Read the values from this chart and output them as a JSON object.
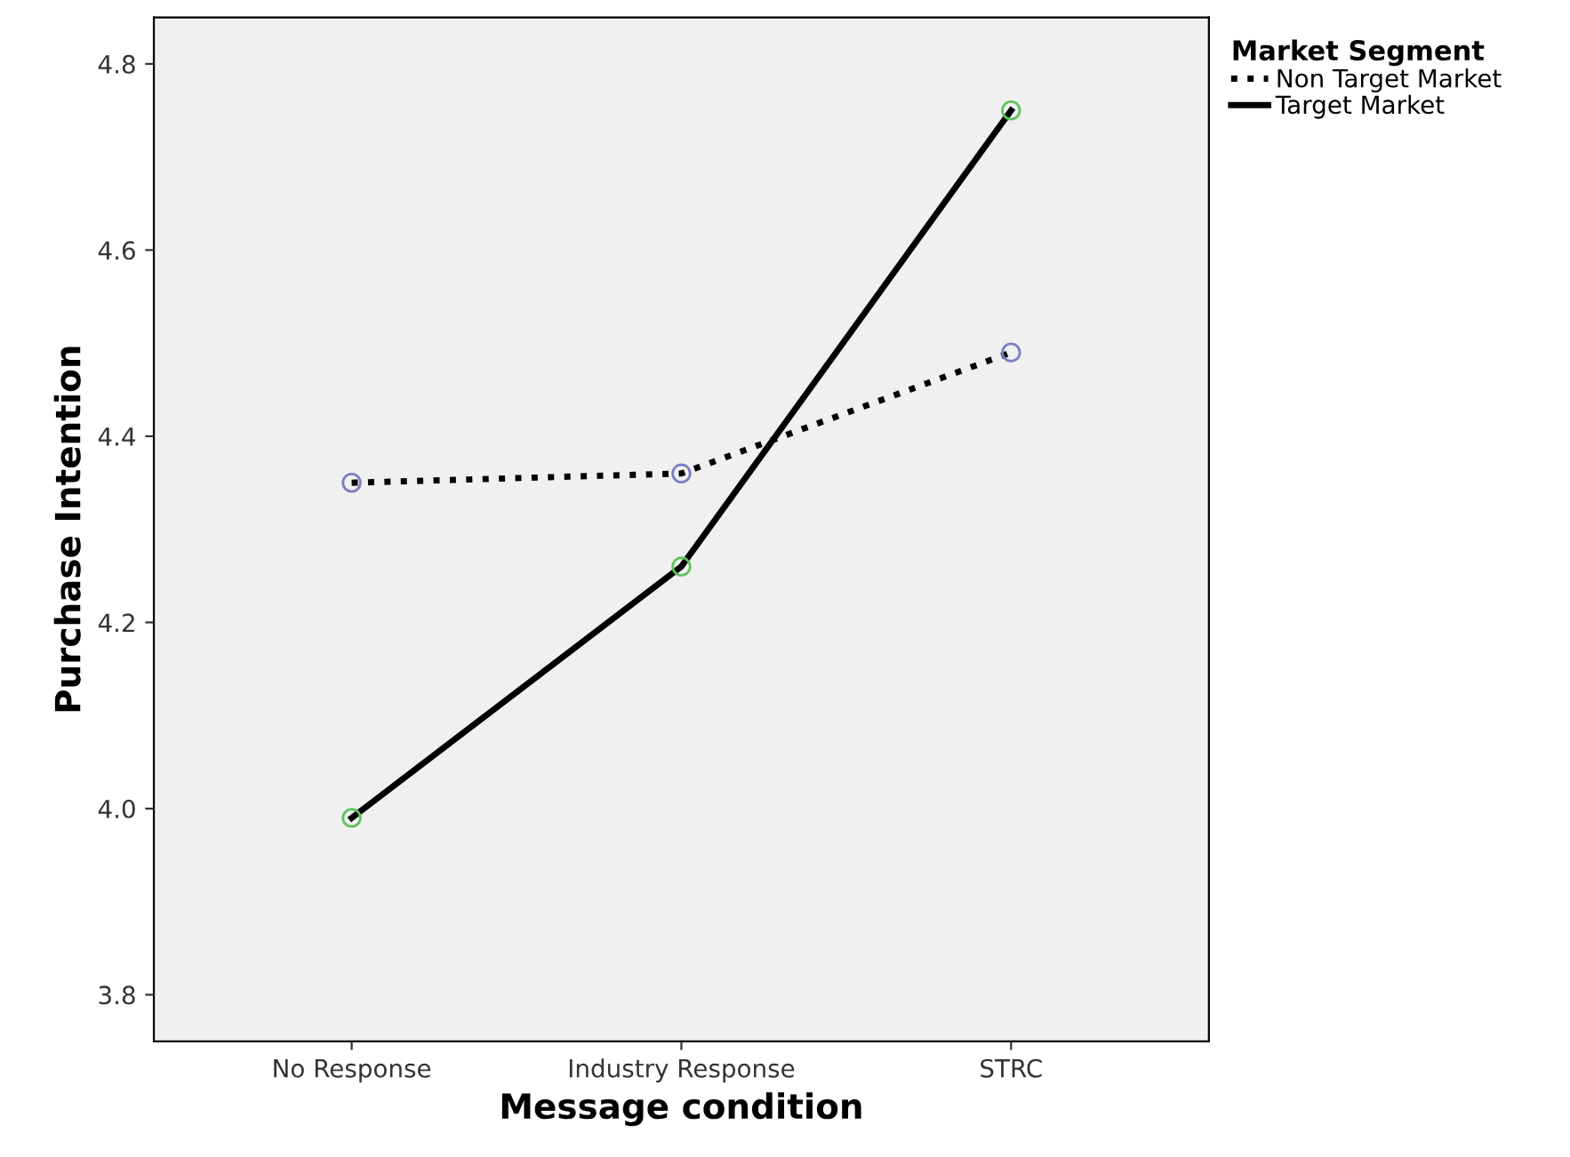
{
  "chart_data": {
    "type": "line",
    "xlabel": "Message condition",
    "ylabel": "Purchase Intention",
    "legend_title": "Market Segment",
    "categories": [
      "No Response",
      "Industry Response",
      "STRC"
    ],
    "series": [
      {
        "name": "Non Target Market",
        "color": "#000000",
        "colors": [
          "#7b7fc4",
          "#7b7fc4",
          "#7b7fc4"
        ],
        "line_style": "dotted",
        "values": [
          4.35,
          4.36,
          4.49
        ]
      },
      {
        "name": "Target Market",
        "color": "#000000",
        "colors": [
          "#5cc45c",
          "#5cc45c",
          "#5cc45c"
        ],
        "line_style": "solid",
        "values": [
          3.99,
          4.26,
          4.75
        ]
      }
    ],
    "ylim": [
      3.75,
      4.85
    ],
    "yticks": [
      3.8,
      {
        "value": 4,
        "label": "4.0"
      },
      4.2,
      4.4,
      4.6,
      4.8
    ],
    "grid": false,
    "legend": "top right",
    "marker": "circle"
  }
}
